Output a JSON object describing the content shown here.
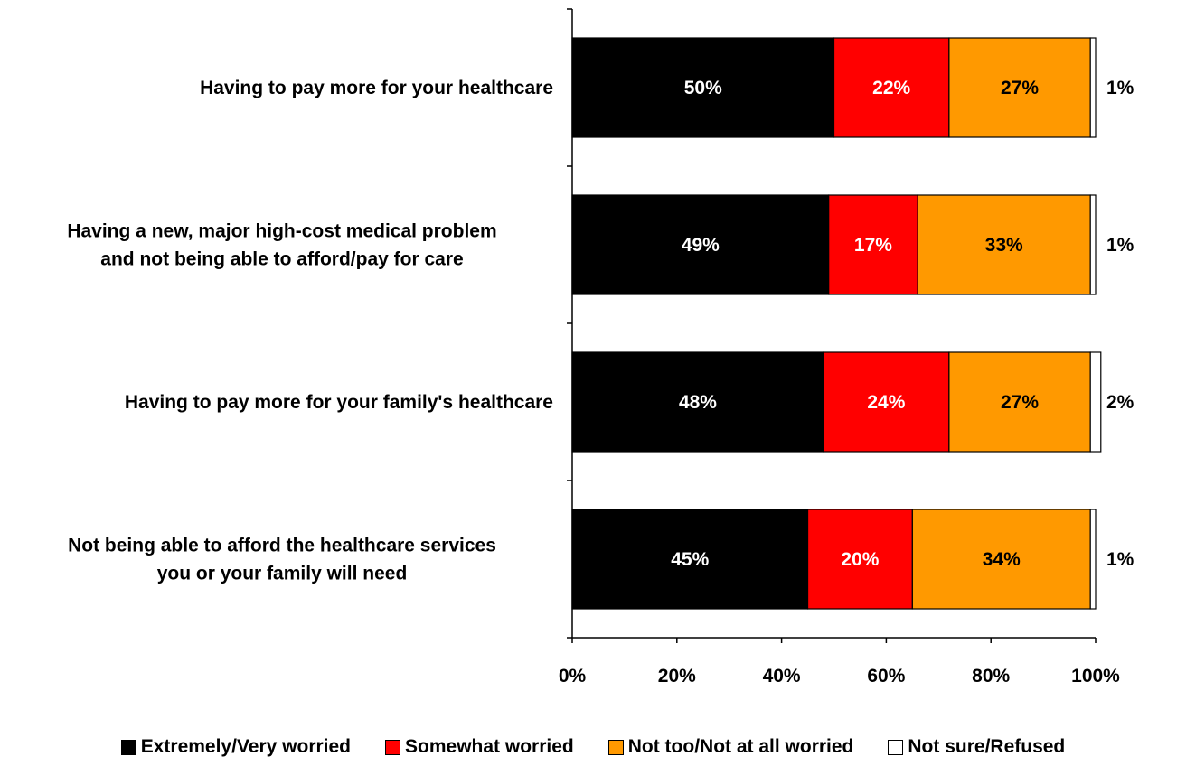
{
  "chart_data": {
    "type": "bar",
    "orientation": "horizontal",
    "stacked": true,
    "title": "",
    "xlabel": "",
    "ylabel": "",
    "xlim": [
      0,
      100
    ],
    "x_ticks": [
      "0%",
      "20%",
      "40%",
      "60%",
      "80%",
      "100%"
    ],
    "grid": false,
    "legend_position": "bottom",
    "categories": [
      [
        "Having to pay more for your healthcare"
      ],
      [
        "Having a new, major high-cost medical problem",
        "and not being able to afford/pay for care"
      ],
      [
        "Having to pay more for your family's healthcare"
      ],
      [
        "Not being able to afford the healthcare services",
        "you or your family will need"
      ]
    ],
    "series": [
      {
        "name": "Extremely/Very worried",
        "color": "#000000",
        "label_color": "#ffffff",
        "values": [
          50,
          49,
          48,
          45
        ],
        "labels": [
          "50%",
          "49%",
          "48%",
          "45%"
        ]
      },
      {
        "name": "Somewhat worried",
        "color": "#ff0000",
        "label_color": "#ffffff",
        "values": [
          22,
          17,
          24,
          20
        ],
        "labels": [
          "22%",
          "17%",
          "24%",
          "20%"
        ]
      },
      {
        "name": "Not too/Not at all worried",
        "color": "#ff9900",
        "label_color": "#000000",
        "values": [
          27,
          33,
          27,
          34
        ],
        "labels": [
          "27%",
          "33%",
          "27%",
          "34%"
        ]
      },
      {
        "name": "Not sure/Refused",
        "color": "#ffffff",
        "label_color": "#000000",
        "values": [
          1,
          1,
          2,
          1
        ],
        "labels": [
          "1%",
          "1%",
          "2%",
          "1%"
        ]
      }
    ]
  }
}
